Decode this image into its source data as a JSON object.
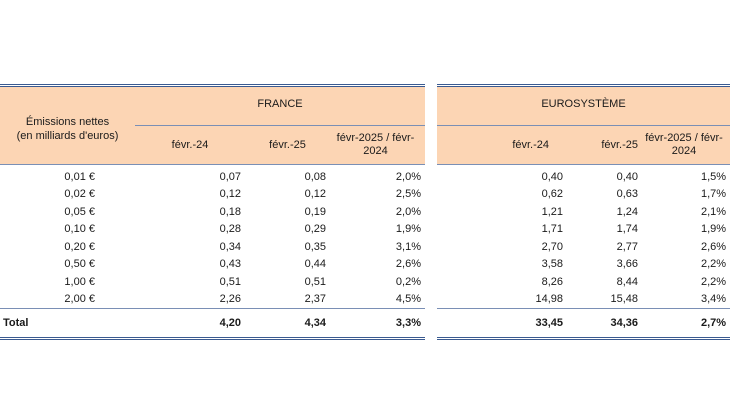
{
  "header": {
    "row_label": "Émissions nettes\n(en milliards d'euros)",
    "groups": [
      {
        "name": "FRANCE",
        "columns": [
          "févr.-24",
          "févr.-25",
          "févr-2025 / févr-\n2024"
        ]
      },
      {
        "name": "EUROSYSTÈME",
        "columns": [
          "févr.-24",
          "févr.-25",
          "févr-2025 / févr-\n2024"
        ]
      }
    ]
  },
  "rows": [
    {
      "label": "0,01 €",
      "france": [
        "0,07",
        "0,08",
        "2,0%"
      ],
      "euro": [
        "0,40",
        "0,40",
        "1,5%"
      ]
    },
    {
      "label": "0,02 €",
      "france": [
        "0,12",
        "0,12",
        "2,5%"
      ],
      "euro": [
        "0,62",
        "0,63",
        "1,7%"
      ]
    },
    {
      "label": "0,05 €",
      "france": [
        "0,18",
        "0,19",
        "2,0%"
      ],
      "euro": [
        "1,21",
        "1,24",
        "2,1%"
      ]
    },
    {
      "label": "0,10 €",
      "france": [
        "0,28",
        "0,29",
        "1,9%"
      ],
      "euro": [
        "1,71",
        "1,74",
        "1,9%"
      ]
    },
    {
      "label": "0,20 €",
      "france": [
        "0,34",
        "0,35",
        "3,1%"
      ],
      "euro": [
        "2,70",
        "2,77",
        "2,6%"
      ]
    },
    {
      "label": "0,50 €",
      "france": [
        "0,43",
        "0,44",
        "2,6%"
      ],
      "euro": [
        "3,58",
        "3,66",
        "2,2%"
      ]
    },
    {
      "label": "1,00 €",
      "france": [
        "0,51",
        "0,51",
        "0,2%"
      ],
      "euro": [
        "8,26",
        "8,44",
        "2,2%"
      ]
    },
    {
      "label": "2,00 €",
      "france": [
        "2,26",
        "2,37",
        "4,5%"
      ],
      "euro": [
        "14,98",
        "15,48",
        "3,4%"
      ]
    }
  ],
  "total": {
    "label": "Total",
    "france": [
      "4,20",
      "4,34",
      "3,3%"
    ],
    "euro": [
      "33,45",
      "34,36",
      "2,7%"
    ]
  }
}
